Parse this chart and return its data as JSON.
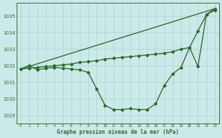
{
  "xlabel": "Graphe pression niveau de la mer (hPa)",
  "ylabel": "",
  "background_color": "#cce9e9",
  "grid_color": "#b0d8d8",
  "line_color": "#2d6a2d",
  "marker_style": "D",
  "marker_size": 2.0,
  "line_width": 1.0,
  "xlim": [
    -0.5,
    23.5
  ],
  "ylim": [
    1028.5,
    1035.8
  ],
  "yticks": [
    1029,
    1030,
    1031,
    1032,
    1033,
    1034,
    1035
  ],
  "xticks": [
    0,
    1,
    2,
    3,
    4,
    5,
    6,
    7,
    8,
    9,
    10,
    11,
    12,
    13,
    14,
    15,
    16,
    17,
    18,
    19,
    20,
    21,
    22,
    23
  ],
  "series1_x": [
    0,
    1,
    2,
    3,
    4,
    5,
    6,
    7,
    8,
    9,
    10,
    11,
    12,
    13,
    14,
    15,
    16,
    17,
    18,
    19,
    20,
    21,
    22,
    23
  ],
  "series1_y": [
    1031.8,
    1032.0,
    1031.75,
    1031.85,
    1031.9,
    1031.85,
    1031.8,
    1031.75,
    1031.6,
    1030.6,
    1029.6,
    1029.35,
    1029.35,
    1029.4,
    1029.35,
    1029.35,
    1029.7,
    1030.8,
    1031.5,
    1031.9,
    1033.1,
    1031.95,
    1035.1,
    1035.45
  ],
  "series2_x": [
    0,
    1,
    2,
    3,
    4,
    5,
    6,
    7,
    8,
    9,
    10,
    11,
    12,
    13,
    14,
    15,
    16,
    17,
    18,
    19,
    20,
    21,
    22,
    23
  ],
  "series2_y": [
    1031.8,
    1031.85,
    1031.9,
    1031.95,
    1032.0,
    1032.05,
    1032.1,
    1032.2,
    1032.25,
    1032.3,
    1032.4,
    1032.45,
    1032.5,
    1032.55,
    1032.6,
    1032.65,
    1032.7,
    1032.75,
    1032.85,
    1033.0,
    1033.1,
    1034.1,
    1035.1,
    1035.35
  ],
  "series3_x": [
    0,
    23
  ],
  "series3_y": [
    1031.8,
    1035.45
  ]
}
